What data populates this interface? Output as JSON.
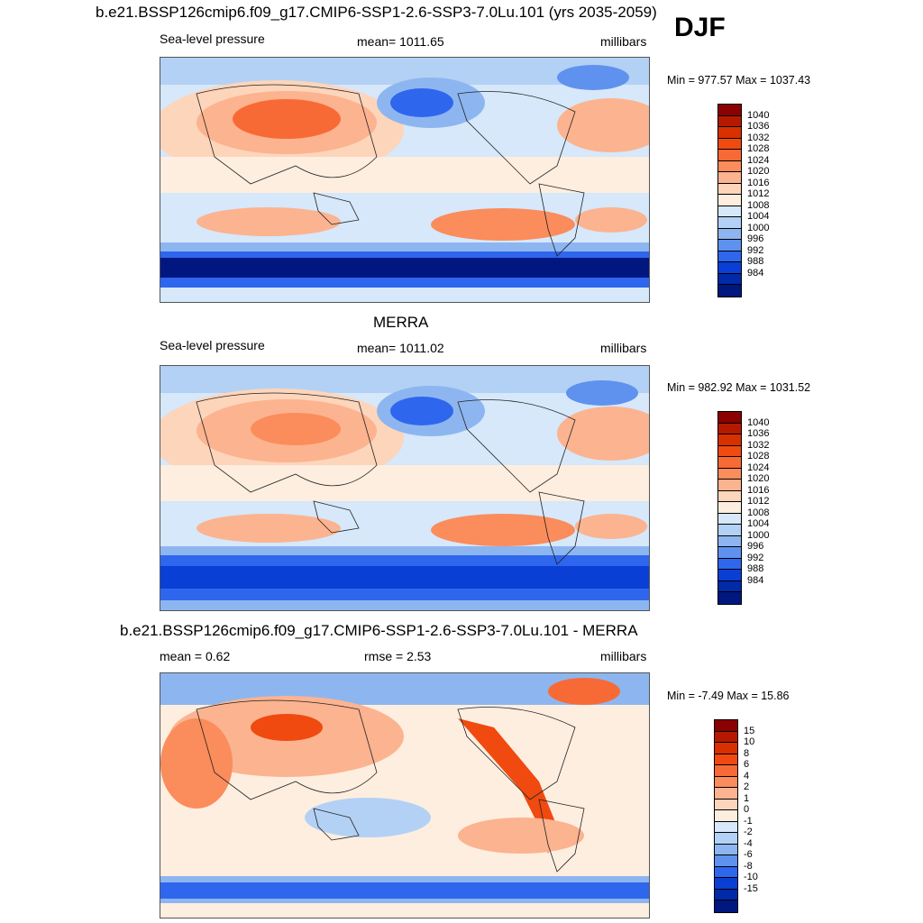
{
  "figure": {
    "main_title": "b.e21.BSSP126cmip6.f09_g17.CMIP6-SSP1-2.6-SSP3-7.0Lu.101 (yrs 2035-2059)",
    "season": "DJF"
  },
  "panels": [
    {
      "id": "model",
      "title": "",
      "left_label": "Sea-level pressure",
      "center_label": "mean= 1011.65",
      "right_label": "millibars",
      "minmax": "Min = 977.57 Max = 1037.43",
      "colorbar": {
        "labels": [
          "1040",
          "1036",
          "1032",
          "1028",
          "1024",
          "1020",
          "1016",
          "1012",
          "1008",
          "1004",
          "1000",
          "996",
          "992",
          "988",
          "984"
        ],
        "colors": [
          "#8b0000",
          "#b51a00",
          "#d93000",
          "#f04a10",
          "#f86a35",
          "#fb8c5c",
          "#fcb38f",
          "#fdd5bb",
          "#fdeee0",
          "#d6e8fa",
          "#b3d1f5",
          "#8db6f0",
          "#5f92ee",
          "#2f66ee",
          "#0a3fd6",
          "#002aa8",
          "#001780"
        ]
      }
    },
    {
      "id": "obs",
      "title": "MERRA",
      "left_label": "Sea-level pressure",
      "center_label": "mean= 1011.02",
      "right_label": "millibars",
      "minmax": "Min = 982.92 Max = 1031.52",
      "colorbar": {
        "labels": [
          "1040",
          "1036",
          "1032",
          "1028",
          "1024",
          "1020",
          "1016",
          "1012",
          "1008",
          "1004",
          "1000",
          "996",
          "992",
          "988",
          "984"
        ],
        "colors": [
          "#8b0000",
          "#b51a00",
          "#d93000",
          "#f04a10",
          "#f86a35",
          "#fb8c5c",
          "#fcb38f",
          "#fdd5bb",
          "#fdeee0",
          "#d6e8fa",
          "#b3d1f5",
          "#8db6f0",
          "#5f92ee",
          "#2f66ee",
          "#0a3fd6",
          "#002aa8",
          "#001780"
        ]
      }
    },
    {
      "id": "diff",
      "title": "b.e21.BSSP126cmip6.f09_g17.CMIP6-SSP1-2.6-SSP3-7.0Lu.101 - MERRA",
      "left_label": "mean =   0.62",
      "center_label": "rmse =   2.53",
      "right_label": "millibars",
      "minmax": "Min =  -7.49 Max =  15.86",
      "colorbar": {
        "labels": [
          "15",
          "10",
          "8",
          "6",
          "4",
          "2",
          "1",
          "0",
          "-1",
          "-2",
          "-4",
          "-6",
          "-8",
          "-10",
          "-15"
        ],
        "colors": [
          "#8b0000",
          "#b51a00",
          "#d93000",
          "#f04a10",
          "#f86a35",
          "#fb8c5c",
          "#fcb38f",
          "#fdd5bb",
          "#fdeee0",
          "#d6e8fa",
          "#b3d1f5",
          "#8db6f0",
          "#5f92ee",
          "#2f66ee",
          "#0a3fd6",
          "#002aa8",
          "#001780"
        ]
      }
    }
  ]
}
